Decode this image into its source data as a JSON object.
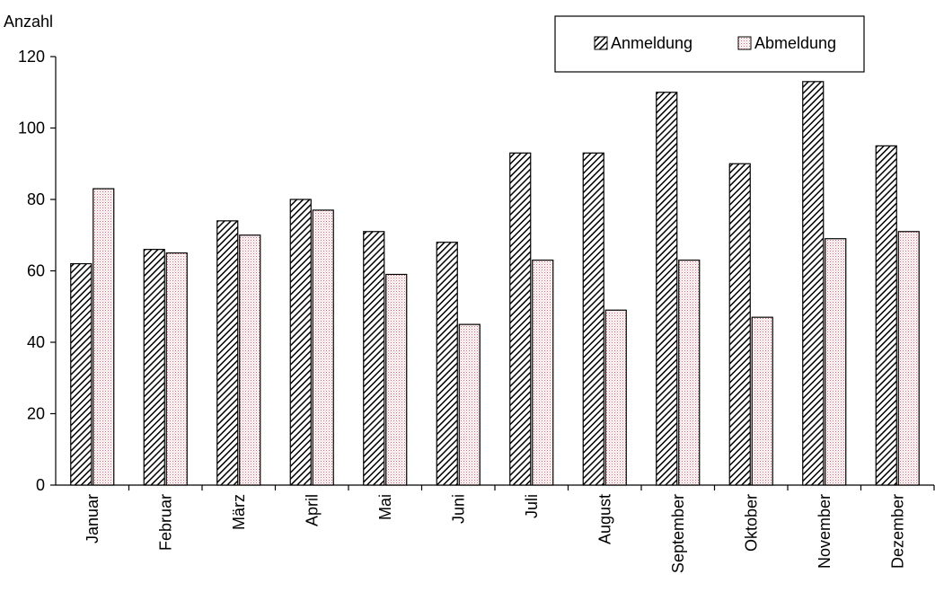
{
  "chart_data": {
    "type": "bar",
    "ylabel": "Anzahl",
    "xlabel": "",
    "title": "",
    "ylim": [
      0,
      120
    ],
    "yticks": [
      0,
      20,
      40,
      60,
      80,
      100,
      120
    ],
    "categories": [
      "Januar",
      "Februar",
      "März",
      "April",
      "Mai",
      "Juni",
      "Juli",
      "August",
      "September",
      "Oktober",
      "November",
      "Dezember"
    ],
    "series": [
      {
        "name": "Anmeldung",
        "pattern": "diagonal-hatch",
        "color": "#000000",
        "values": [
          62,
          66,
          74,
          80,
          71,
          68,
          93,
          93,
          110,
          90,
          113,
          95
        ]
      },
      {
        "name": "Abmeldung",
        "pattern": "pink-dots",
        "color": "#e06070",
        "values": [
          83,
          65,
          70,
          77,
          59,
          45,
          63,
          49,
          63,
          47,
          69,
          71
        ]
      }
    ],
    "legend_position": "top-right",
    "grid": false
  }
}
